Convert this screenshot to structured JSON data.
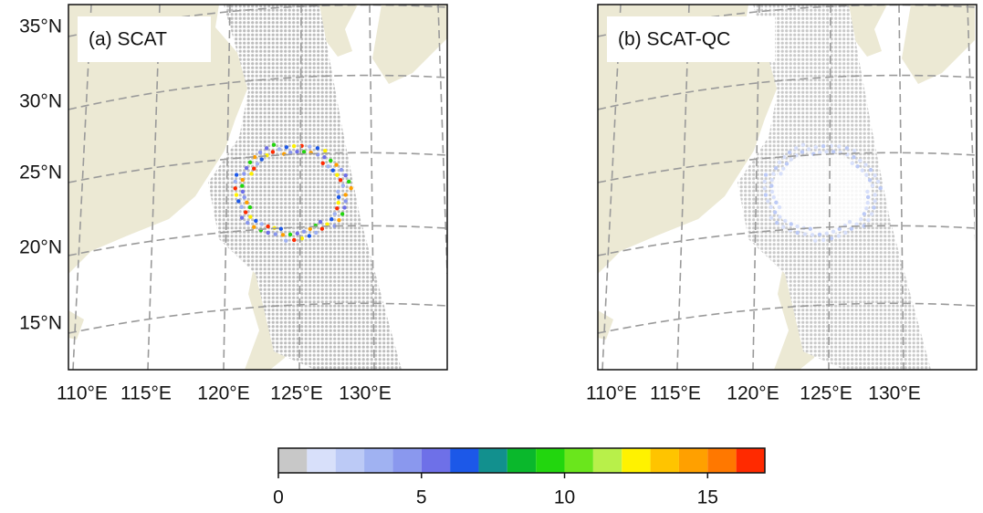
{
  "panels": [
    {
      "title": "(a) SCAT",
      "lat_labels": [
        "35°N",
        "30°N",
        "25°N",
        "20°N",
        "15°N"
      ],
      "lon_labels": [
        "110°E",
        "115°E",
        "120°E",
        "125°E",
        "130°E"
      ]
    },
    {
      "title": "(b) SCAT-QC",
      "lon_labels": [
        "110°E",
        "115°E",
        "120°E",
        "125°E",
        "130°E"
      ]
    }
  ],
  "colorbar": {
    "bins": [
      0,
      1,
      2,
      3,
      4,
      5,
      6,
      7,
      8,
      9,
      10,
      11,
      12,
      13,
      14,
      15,
      16,
      17
    ],
    "colors": [
      "#c8c8c8",
      "#d8e0fa",
      "#bccaf6",
      "#a0b2f2",
      "#8a98ee",
      "#6e70e8",
      "#1c58e8",
      "#12908e",
      "#0ab82c",
      "#22d60e",
      "#6ae61c",
      "#b8f04a",
      "#fff200",
      "#ffc400",
      "#ffa000",
      "#ff7800",
      "#ff2a00"
    ],
    "ticks": [
      0,
      5,
      10,
      15
    ]
  }
}
